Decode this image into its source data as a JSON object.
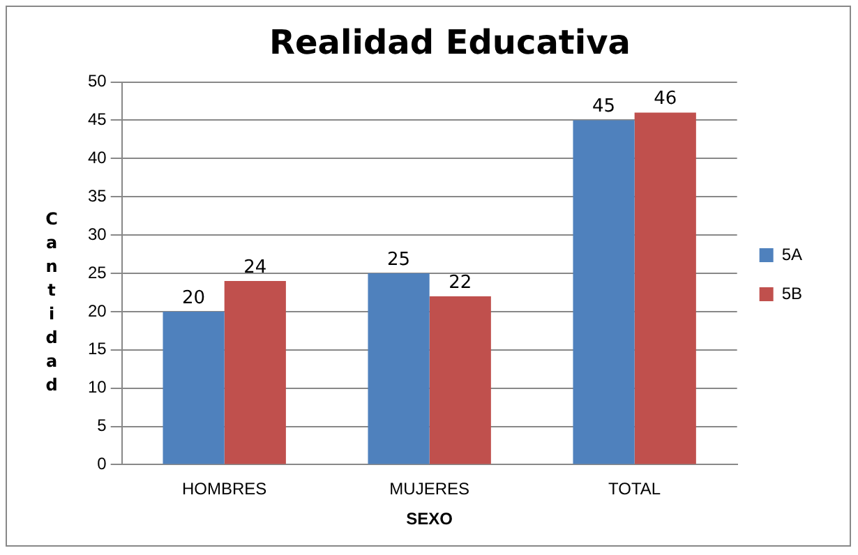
{
  "chart_data": {
    "type": "bar",
    "title": "Realidad Educativa",
    "xlabel": "SEXO",
    "ylabel": "Cantidad",
    "categories": [
      "HOMBRES",
      "MUJERES",
      "TOTAL"
    ],
    "series": [
      {
        "name": "5A",
        "color": "#4f81bd",
        "values": [
          20,
          25,
          45
        ]
      },
      {
        "name": "5B",
        "color": "#c0504d",
        "values": [
          24,
          22,
          46
        ]
      }
    ],
    "ylim": [
      0,
      50
    ],
    "yticks": [
      0,
      5,
      10,
      15,
      20,
      25,
      30,
      35,
      40,
      45,
      50
    ],
    "grid": "y",
    "legend": "right",
    "data_labels": true
  }
}
